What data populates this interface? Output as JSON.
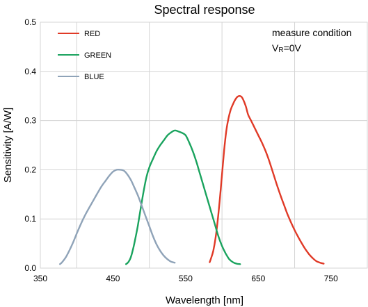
{
  "chart_data": {
    "type": "line",
    "title": "Spectral response",
    "xlabel": "Wavelength [nm]",
    "ylabel": "Sensitivity [A/W]",
    "xlim": [
      350,
      800
    ],
    "ylim": [
      0,
      0.5
    ],
    "x_ticks": [
      {
        "value": 350,
        "label": "350"
      },
      {
        "value": 450,
        "label": "450"
      },
      {
        "value": 550,
        "label": "550"
      },
      {
        "value": 650,
        "label": "650"
      },
      {
        "value": 750,
        "label": "750"
      }
    ],
    "y_ticks": [
      {
        "value": 0.0,
        "label": "0.0"
      },
      {
        "value": 0.1,
        "label": "0.1"
      },
      {
        "value": 0.2,
        "label": "0.2"
      },
      {
        "value": 0.3,
        "label": "0.3"
      },
      {
        "value": 0.4,
        "label": "0.4"
      },
      {
        "value": 0.5,
        "label": "0.5"
      }
    ],
    "x_gridlines": [
      400,
      500,
      600,
      700,
      800
    ],
    "grid": true,
    "legend_position": "top-left",
    "annotation": {
      "line1": "measure condition",
      "line2_main": "V",
      "line2_sub": "R",
      "line2_rest": "=0V",
      "position": "top-right"
    },
    "series": [
      {
        "name": "RED",
        "color": "#e03a27",
        "x": [
          583,
          585,
          588,
          591,
          594,
          597,
          600,
          603,
          606,
          609,
          612,
          615,
          618,
          621,
          624,
          627,
          630,
          633,
          636,
          640,
          645,
          650,
          655,
          660,
          665,
          670,
          675,
          680,
          685,
          690,
          695,
          700,
          705,
          710,
          715,
          720,
          725,
          730,
          735,
          740
        ],
        "y": [
          0.012,
          0.02,
          0.035,
          0.06,
          0.095,
          0.14,
          0.19,
          0.24,
          0.28,
          0.305,
          0.322,
          0.333,
          0.342,
          0.348,
          0.35,
          0.348,
          0.34,
          0.328,
          0.312,
          0.3,
          0.285,
          0.27,
          0.255,
          0.238,
          0.218,
          0.195,
          0.172,
          0.15,
          0.13,
          0.11,
          0.093,
          0.077,
          0.063,
          0.05,
          0.038,
          0.028,
          0.02,
          0.014,
          0.011,
          0.009
        ]
      },
      {
        "name": "GREEN",
        "color": "#1aa35e",
        "x": [
          468,
          471,
          474,
          477,
          480,
          484,
          488,
          492,
          496,
          500,
          505,
          510,
          515,
          520,
          525,
          530,
          535,
          540,
          545,
          550,
          555,
          560,
          565,
          570,
          575,
          580,
          585,
          590,
          595,
          600,
          605,
          610,
          615,
          620,
          625
        ],
        "y": [
          0.008,
          0.012,
          0.02,
          0.035,
          0.055,
          0.085,
          0.12,
          0.155,
          0.185,
          0.205,
          0.222,
          0.238,
          0.25,
          0.26,
          0.27,
          0.276,
          0.28,
          0.278,
          0.275,
          0.27,
          0.255,
          0.237,
          0.215,
          0.19,
          0.165,
          0.14,
          0.115,
          0.09,
          0.065,
          0.045,
          0.03,
          0.018,
          0.012,
          0.009,
          0.008
        ]
      },
      {
        "name": "BLUE",
        "color": "#8fa3b8",
        "x": [
          377,
          380,
          385,
          390,
          395,
          400,
          405,
          410,
          415,
          420,
          425,
          430,
          435,
          440,
          445,
          450,
          455,
          460,
          465,
          470,
          475,
          480,
          485,
          490,
          495,
          500,
          505,
          510,
          515,
          520,
          525,
          530,
          535
        ],
        "y": [
          0.008,
          0.012,
          0.022,
          0.036,
          0.052,
          0.07,
          0.087,
          0.103,
          0.117,
          0.13,
          0.143,
          0.156,
          0.168,
          0.178,
          0.188,
          0.196,
          0.2,
          0.2,
          0.198,
          0.19,
          0.178,
          0.162,
          0.145,
          0.125,
          0.105,
          0.085,
          0.065,
          0.048,
          0.035,
          0.025,
          0.018,
          0.013,
          0.011
        ]
      }
    ]
  }
}
